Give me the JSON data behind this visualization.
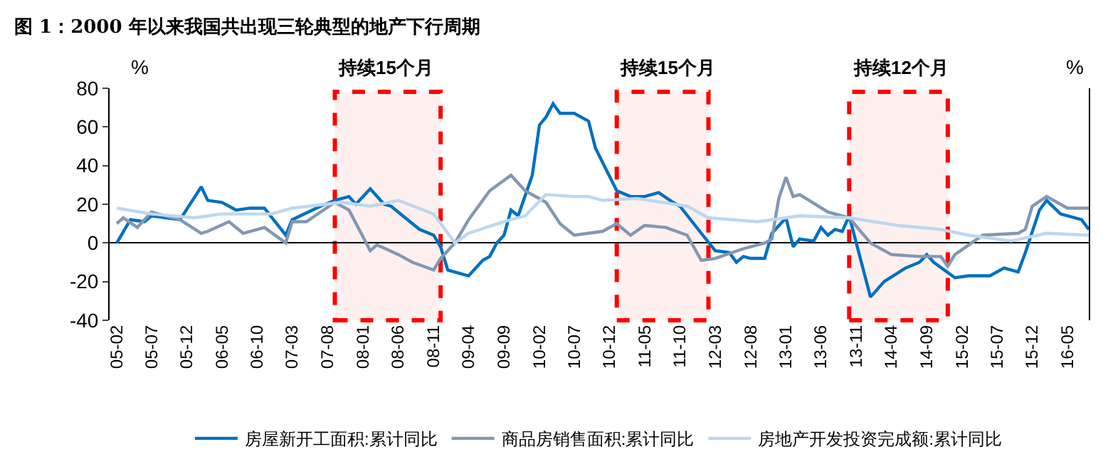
{
  "chart_data": {
    "type": "line",
    "title": "图 1：2000 年以来我国共出现三轮典型的地产下行周期",
    "ylabel": "%",
    "y2label": "%",
    "xlim": [
      "2005-01",
      "2016-08"
    ],
    "xticks": [
      {
        "value": "2005-02",
        "label": "05-02"
      },
      {
        "value": "2005-07",
        "label": "05-07"
      },
      {
        "value": "2005-12",
        "label": "05-12"
      },
      {
        "value": "2006-05",
        "label": "06-05"
      },
      {
        "value": "2006-10",
        "label": "06-10"
      },
      {
        "value": "2007-03",
        "label": "07-03"
      },
      {
        "value": "2007-08",
        "label": "07-08"
      },
      {
        "value": "2008-01",
        "label": "08-01"
      },
      {
        "value": "2008-06",
        "label": "08-06"
      },
      {
        "value": "2008-11",
        "label": "08-11"
      },
      {
        "value": "2009-04",
        "label": "09-04"
      },
      {
        "value": "2009-09",
        "label": "09-09"
      },
      {
        "value": "2010-02",
        "label": "10-02"
      },
      {
        "value": "2010-07",
        "label": "10-07"
      },
      {
        "value": "2010-12",
        "label": "10-12"
      },
      {
        "value": "2011-05",
        "label": "11-05"
      },
      {
        "value": "2011-10",
        "label": "11-10"
      },
      {
        "value": "2012-03",
        "label": "12-03"
      },
      {
        "value": "2012-08",
        "label": "12-08"
      },
      {
        "value": "2013-01",
        "label": "13-01"
      },
      {
        "value": "2013-06",
        "label": "13-06"
      },
      {
        "value": "2013-11",
        "label": "13-11"
      },
      {
        "value": "2014-04",
        "label": "14-04"
      },
      {
        "value": "2014-09",
        "label": "14-09"
      },
      {
        "value": "2015-02",
        "label": "15-02"
      },
      {
        "value": "2015-07",
        "label": "15-07"
      },
      {
        "value": "2015-12",
        "label": "15-12"
      },
      {
        "value": "2016-05",
        "label": "16-05"
      }
    ],
    "ylim": [
      -40,
      80
    ],
    "yticks": [
      -40,
      -20,
      0,
      20,
      40,
      60,
      80
    ],
    "legend": "bottom",
    "line_style": "solid",
    "series": [
      {
        "name": "房屋新开工面积:累计同比",
        "color": "#0070c0",
        "x": [
          "2005-02",
          "2005-04",
          "2005-06",
          "2005-07",
          "2005-11",
          "2006-02",
          "2006-03",
          "2006-05",
          "2006-06",
          "2006-07",
          "2006-09",
          "2006-11",
          "2007-02",
          "2007-03",
          "2007-07",
          "2007-09",
          "2007-11",
          "2007-12",
          "2008-02",
          "2008-04",
          "2008-05",
          "2008-07",
          "2008-09",
          "2008-11",
          "2008-12",
          "2009-01",
          "2009-03",
          "2009-04",
          "2009-06",
          "2009-07",
          "2009-08",
          "2009-09",
          "2009-10",
          "2009-11",
          "2010-01",
          "2010-02",
          "2010-03",
          "2010-04",
          "2010-05",
          "2010-07",
          "2010-09",
          "2010-10",
          "2011-01",
          "2011-03",
          "2011-05",
          "2011-07",
          "2011-09",
          "2011-10",
          "2012-01",
          "2012-03",
          "2012-05",
          "2012-06",
          "2012-07",
          "2012-08",
          "2012-10",
          "2012-11",
          "2013-01",
          "2013-02",
          "2013-03",
          "2013-05",
          "2013-06",
          "2013-07",
          "2013-08",
          "2013-09",
          "2013-10",
          "2014-01",
          "2014-03",
          "2014-06",
          "2014-08",
          "2014-09",
          "2014-10",
          "2015-01",
          "2015-03",
          "2015-06",
          "2015-08",
          "2015-10",
          "2015-11",
          "2016-01",
          "2016-02",
          "2016-04",
          "2016-07",
          "2016-08"
        ],
        "values": [
          0,
          12,
          11,
          14,
          12,
          29,
          22,
          21,
          19,
          17,
          18,
          18,
          4,
          12,
          19,
          22,
          24,
          20,
          28,
          20,
          19,
          13,
          7,
          4,
          -2,
          -14,
          -16,
          -17,
          -9,
          -7,
          0,
          4,
          17,
          14,
          35,
          61,
          65,
          72,
          67,
          67,
          63,
          49,
          27,
          24,
          24,
          26,
          21,
          19,
          5,
          -4,
          -5,
          -10,
          -7,
          -8,
          -8,
          5,
          13,
          -2,
          2,
          1,
          8,
          4,
          7,
          6,
          14,
          -28,
          -20,
          -13,
          -10,
          -6,
          -10,
          -18,
          -17,
          -17,
          -13,
          -15,
          -5,
          17,
          22,
          15,
          12,
          7
        ]
      },
      {
        "name": "商品房销售面积:累计同比",
        "color": "#8497b0",
        "x": [
          "2005-02",
          "2005-03",
          "2005-05",
          "2005-07",
          "2005-11",
          "2006-02",
          "2006-03",
          "2006-06",
          "2006-08",
          "2006-11",
          "2007-02",
          "2007-03",
          "2007-05",
          "2007-09",
          "2007-11",
          "2008-02",
          "2008-03",
          "2008-06",
          "2008-08",
          "2008-11",
          "2008-12",
          "2009-02",
          "2009-04",
          "2009-07",
          "2009-10",
          "2009-12",
          "2010-03",
          "2010-05",
          "2010-07",
          "2010-11",
          "2011-01",
          "2011-03",
          "2011-05",
          "2011-08",
          "2011-11",
          "2012-01",
          "2012-03",
          "2012-07",
          "2012-10",
          "2012-11",
          "2012-12",
          "2013-01",
          "2013-02",
          "2013-03",
          "2013-07",
          "2013-10",
          "2014-01",
          "2014-04",
          "2014-08",
          "2014-11",
          "2014-12",
          "2015-01",
          "2015-05",
          "2015-10",
          "2015-11",
          "2015-12",
          "2016-02",
          "2016-05",
          "2016-08"
        ],
        "values": [
          10,
          13,
          8,
          16,
          12,
          5,
          6,
          11,
          5,
          8,
          0,
          11,
          11,
          21,
          17,
          -4,
          -1,
          -6,
          -10,
          -14,
          -8,
          0,
          12,
          27,
          35,
          27,
          21,
          10,
          4,
          6,
          10,
          4,
          9,
          8,
          4,
          -9,
          -8,
          -3,
          0,
          2,
          23,
          34,
          24,
          25,
          16,
          13,
          0,
          -6,
          -7,
          -7,
          -12,
          -6,
          4,
          5,
          7,
          19,
          24,
          18,
          18
        ]
      },
      {
        "name": "房地产开发投资完成额:累计同比",
        "color": "#bdd7ee",
        "x": [
          "2005-02",
          "2005-07",
          "2006-01",
          "2006-05",
          "2006-12",
          "2007-03",
          "2007-10",
          "2008-02",
          "2008-06",
          "2008-11",
          "2009-02",
          "2009-04",
          "2009-09",
          "2009-12",
          "2010-03",
          "2010-07",
          "2010-09",
          "2010-11",
          "2011-04",
          "2011-11",
          "2012-02",
          "2012-09",
          "2013-03",
          "2013-10",
          "2014-05",
          "2014-11",
          "2015-03",
          "2015-09",
          "2016-02",
          "2016-08"
        ],
        "values": [
          18,
          15,
          13,
          15,
          15,
          18,
          21,
          19,
          22,
          15,
          0,
          5,
          11,
          14,
          25,
          24,
          24,
          22,
          23,
          19,
          13,
          11,
          14,
          13,
          9,
          7,
          4,
          1,
          5,
          4
        ]
      }
    ],
    "bands": [
      {
        "axis": "x",
        "from": "2007-09",
        "to": "2008-12",
        "label": "持续15个月",
        "color": "#ff0000"
      },
      {
        "axis": "x",
        "from": "2011-01",
        "to": "2012-02",
        "label": "持续15个月",
        "color": "#ff0000"
      },
      {
        "axis": "x",
        "from": "2013-10",
        "to": "2014-12",
        "label": "持续12个月",
        "color": "#ff0000"
      }
    ]
  }
}
